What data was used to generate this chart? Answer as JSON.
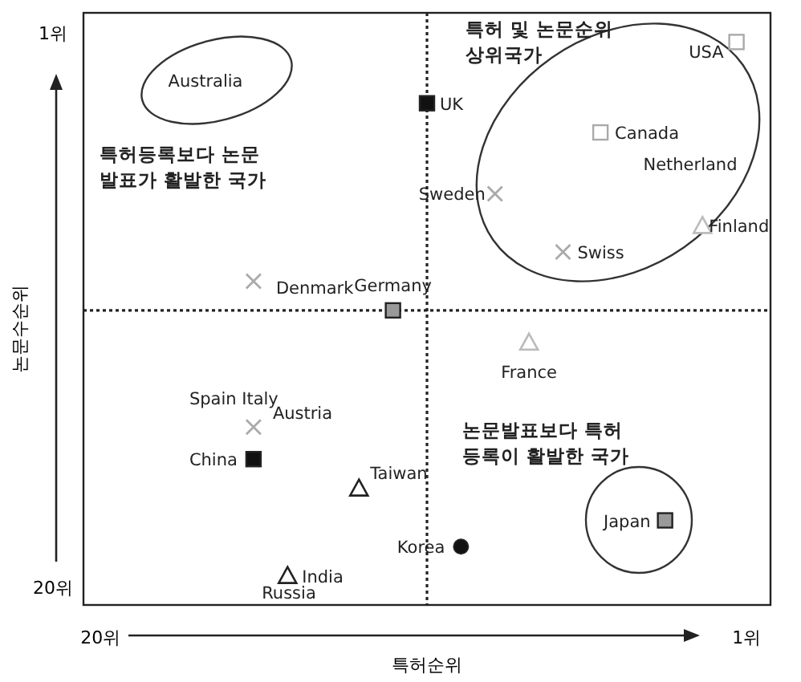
{
  "chart_data": {
    "type": "scatter",
    "xlabel": "특허순위",
    "ylabel": "논문수순위",
    "xlim": [
      20.5,
      0.3
    ],
    "ylim": [
      20.6,
      0.3
    ],
    "xticks": [
      {
        "value": 20,
        "label": "20위"
      },
      {
        "value": 1,
        "label": "1위"
      }
    ],
    "yticks": [
      {
        "value": 1,
        "label": "1위"
      },
      {
        "value": 20,
        "label": "20위"
      }
    ],
    "ref_lines": [
      {
        "axis": "x",
        "value": 10.4,
        "line_style": "dotted"
      },
      {
        "axis": "y",
        "value": 10.5,
        "line_style": "dotted"
      }
    ],
    "grid": false,
    "series": [
      {
        "color": "#111111",
        "marker": "square",
        "x": [
          10.4,
          15.5
        ],
        "values": [
          3.4,
          15.6
        ],
        "value_labels": [
          "UK",
          "China"
        ]
      },
      {
        "color": "#999999",
        "marker": "square",
        "x": [
          11.4,
          3.4
        ],
        "values": [
          10.5,
          17.7
        ],
        "value_labels": [
          "Germany",
          "Japan"
        ]
      },
      {
        "color": "#aaaaaa",
        "marker": "square",
        "x": [
          1.3,
          5.3
        ],
        "values": [
          1.3,
          4.4
        ],
        "value_labels": [
          "USA",
          "Canada"
        ]
      },
      {
        "color": "#222222",
        "marker": "triangle",
        "x": [
          12.4,
          14.5
        ],
        "values": [
          16.6,
          19.6
        ],
        "value_labels": [
          "Taiwan",
          "India"
        ]
      },
      {
        "color": "#bbbbbb",
        "marker": "triangle",
        "x": [
          2.3,
          7.4
        ],
        "values": [
          7.6,
          11.6
        ],
        "value_labels": [
          "Finland",
          "France"
        ]
      },
      {
        "color": "#111111",
        "marker": "circle",
        "x": [
          9.4
        ],
        "values": [
          18.6
        ],
        "value_labels": [
          "Korea"
        ]
      },
      {
        "color": "#aaaaaa",
        "marker": "cross",
        "x": [
          15.5,
          6.4,
          8.4,
          15.5
        ],
        "values": [
          14.5,
          8.5,
          6.5,
          9.5
        ],
        "value_labels": [
          "Spain Italy\nAustria",
          "Swiss",
          "Sweden",
          "Denmark"
        ]
      }
    ],
    "annotations": [
      "특허 및 논문순위\n상위국가",
      "특허등록보다 논문\n발표가 활발한 국가",
      "논문발표보다 특허\n등록이 활발한 국가",
      "Australia",
      "Netherland",
      "Russia"
    ]
  }
}
